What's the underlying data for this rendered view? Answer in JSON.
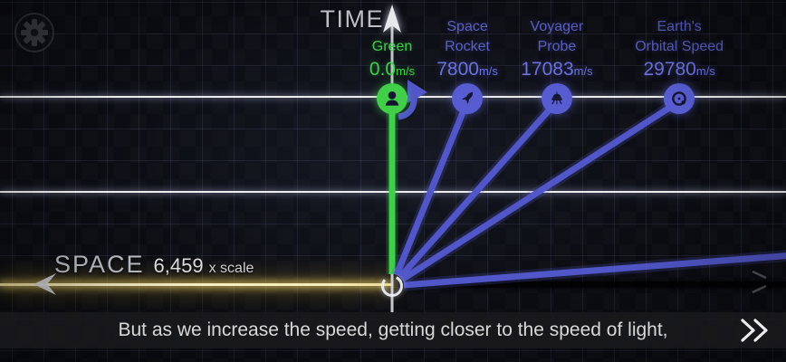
{
  "axes": {
    "time_label": "TIME",
    "space_label": "SPACE",
    "space_scale_value": "6,459",
    "space_scale_suffix": "x scale"
  },
  "objects": [
    {
      "id": "green",
      "name_line1": "",
      "name_line2": "Green",
      "speed_value": "0.0",
      "speed_unit": "m/s",
      "speed_mps": 0,
      "icon": "person-icon",
      "color": "green",
      "marker": true
    },
    {
      "id": "space-rocket",
      "name_line1": "Space",
      "name_line2": "Rocket",
      "speed_value": "7800",
      "speed_unit": "m/s",
      "speed_mps": 7800,
      "icon": "rocket-icon",
      "color": "blue",
      "marker": true
    },
    {
      "id": "voyager-probe",
      "name_line1": "Voyager",
      "name_line2": "Probe",
      "speed_value": "17083",
      "speed_unit": "m/s",
      "speed_mps": 17083,
      "icon": "probe-icon",
      "color": "blue",
      "marker": true
    },
    {
      "id": "earth-orbital-speed",
      "name_line1": "Earth's",
      "name_line2": "Orbital Speed",
      "speed_value": "29780",
      "speed_unit": "m/s",
      "speed_mps": 29780,
      "icon": "orbit-icon",
      "color": "blue",
      "marker": true
    },
    {
      "id": "offscreen-worldline",
      "name_line1": "",
      "name_line2": "",
      "speed_value": "",
      "speed_unit": "",
      "speed_mps": 250000,
      "icon": "",
      "color": "blue",
      "marker": false
    }
  ],
  "subtitle_bar": {
    "text": "But as we increase the speed, getting closer to the speed of light,"
  },
  "icons": {
    "settings": "gear-icon",
    "next": "double-chevron-right-icon",
    "time_axis_arrow": "arrow-up-icon",
    "space_axis_left_arrow": "arrow-left-icon",
    "space_axis_right_arrow": "arrow-right-icon",
    "drag_hint": "drag-right-arrow-icon"
  },
  "colors": {
    "green": "#3fd04a",
    "blue_line": "#5156c8",
    "blue_marker": "#575cd0",
    "blue_text": "#5a60c0",
    "blue_value": "#6c72dc",
    "gold_axis": "#f5ebba",
    "white_gridline": "#ffffff",
    "axis_label": "#bcbfc6",
    "subtitle_text": "#d8d8d8",
    "icon_silhouette": "#14152e"
  }
}
